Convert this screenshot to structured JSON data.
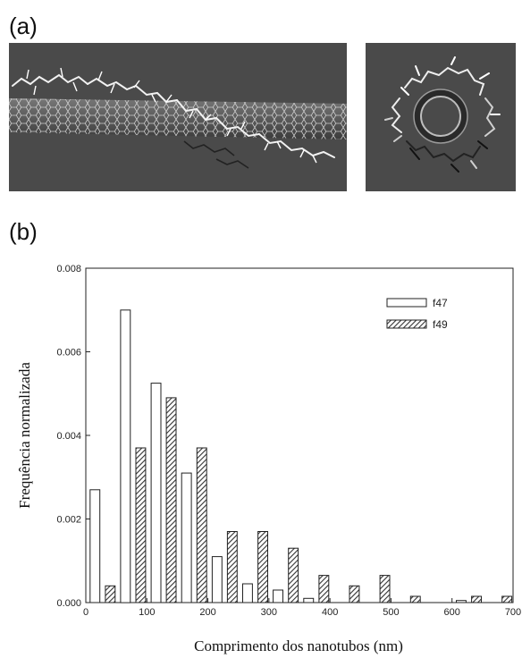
{
  "panels": {
    "a": "(a)",
    "b": "(b)"
  },
  "chart_data": {
    "type": "bar",
    "xlabel": "Comprimento  dos nanotubos  (nm)",
    "ylabel": "Frequência normalizada",
    "xlim": [
      0,
      700
    ],
    "ylim": [
      0,
      0.008
    ],
    "xticks": [
      "0",
      "100",
      "200",
      "300",
      "400",
      "500",
      "600",
      "700"
    ],
    "yticks": [
      "0.000",
      "0.002",
      "0.004",
      "0.006",
      "0.008"
    ],
    "legend_position": "top-right",
    "series": [
      {
        "name": "f47",
        "pattern": "open",
        "x": [
          15,
          65,
          115,
          165,
          215,
          265,
          315,
          365,
          615
        ],
        "values": [
          0.0027,
          0.007,
          0.00525,
          0.0031,
          0.0011,
          0.00045,
          0.0003,
          0.0001,
          5e-05
        ]
      },
      {
        "name": "f49",
        "pattern": "hatched",
        "x": [
          40,
          90,
          140,
          190,
          240,
          290,
          340,
          390,
          440,
          490,
          540,
          640,
          690
        ],
        "values": [
          0.0004,
          0.0037,
          0.0049,
          0.0037,
          0.0017,
          0.0017,
          0.0013,
          0.00065,
          0.0004,
          0.00065,
          0.00015,
          0.00015,
          0.00015
        ]
      }
    ]
  }
}
